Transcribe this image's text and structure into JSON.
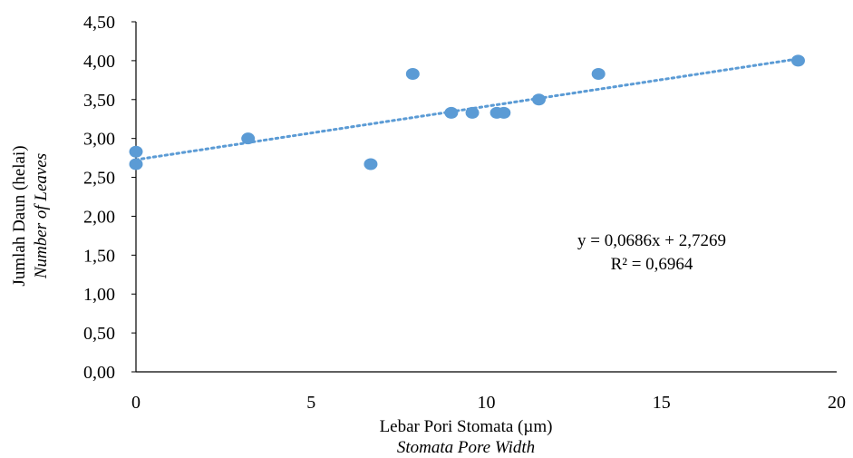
{
  "chart_data": {
    "type": "scatter",
    "title": "",
    "xlabel": "Lebar Pori Stomata (µm)",
    "xlabel_sub": "Stomata Pore Width",
    "ylabel": "Jumlah Daun (helai)",
    "ylabel_sub": "Number of Leaves",
    "xlim": [
      0,
      20
    ],
    "ylim": [
      0,
      4.5
    ],
    "x_ticks": [
      "0",
      "5",
      "10",
      "15",
      "20"
    ],
    "y_ticks": [
      "0,00",
      "0,50",
      "1,00",
      "1,50",
      "2,00",
      "2,50",
      "3,00",
      "3,50",
      "4,00",
      "4,50"
    ],
    "grid": false,
    "legend": "none",
    "marker_color": "#5b9bd5",
    "series": [
      {
        "x": [
          0,
          0,
          3.2,
          6.7,
          7.9,
          9.0,
          9.6,
          10.3,
          10.5,
          11.5,
          13.2,
          18.9
        ],
        "y": [
          2.67,
          2.83,
          3.0,
          2.67,
          3.83,
          3.33,
          3.33,
          3.33,
          3.33,
          3.5,
          3.83,
          4.0
        ]
      }
    ],
    "trendline": {
      "type": "linear",
      "slope": 0.0686,
      "intercept": 2.7269,
      "x_range": [
        0,
        18.9
      ],
      "style": "dotted",
      "color": "#5b9bd5",
      "equation_label": "y = 0,0686x + 2,7269",
      "r2_label": "R² = 0,6964"
    }
  }
}
